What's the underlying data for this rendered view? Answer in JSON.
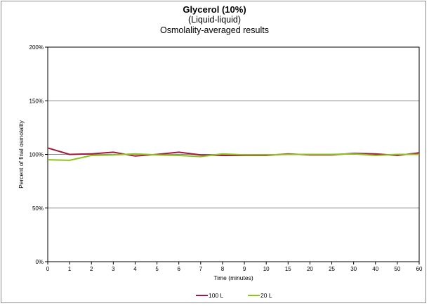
{
  "chart_data": {
    "type": "line",
    "title": "Glycerol (10%)",
    "subtitle": [
      "(Liquid-liquid)",
      "Osmolality-averaged results"
    ],
    "xlabel": "Time (minutes)",
    "ylabel": "Percent of final osmolality",
    "categories": [
      "0",
      "1",
      "2",
      "3",
      "4",
      "5",
      "6",
      "7",
      "8",
      "9",
      "10",
      "15",
      "20",
      "25",
      "30",
      "40",
      "50",
      "60"
    ],
    "ylim": [
      0,
      200
    ],
    "yticks": [
      0,
      50,
      100,
      150,
      200
    ],
    "ytick_labels": [
      "0%",
      "50%",
      "100%",
      "150%",
      "200%"
    ],
    "grid": true,
    "legend_position": "bottom",
    "series": [
      {
        "name": "100 L",
        "color": "#a31a3c",
        "values": [
          106,
          100,
          100.5,
          102,
          98.5,
          100,
          102,
          99.5,
          99,
          99,
          99,
          100.5,
          99.5,
          99.5,
          101,
          100.5,
          99,
          101.5
        ]
      },
      {
        "name": "20 L",
        "color": "#8dc21f",
        "values": [
          95,
          94.5,
          99,
          99.5,
          100.5,
          99.5,
          99,
          98,
          100.5,
          99.5,
          99.5,
          100,
          100,
          100,
          100.5,
          99,
          100,
          100
        ]
      }
    ]
  }
}
